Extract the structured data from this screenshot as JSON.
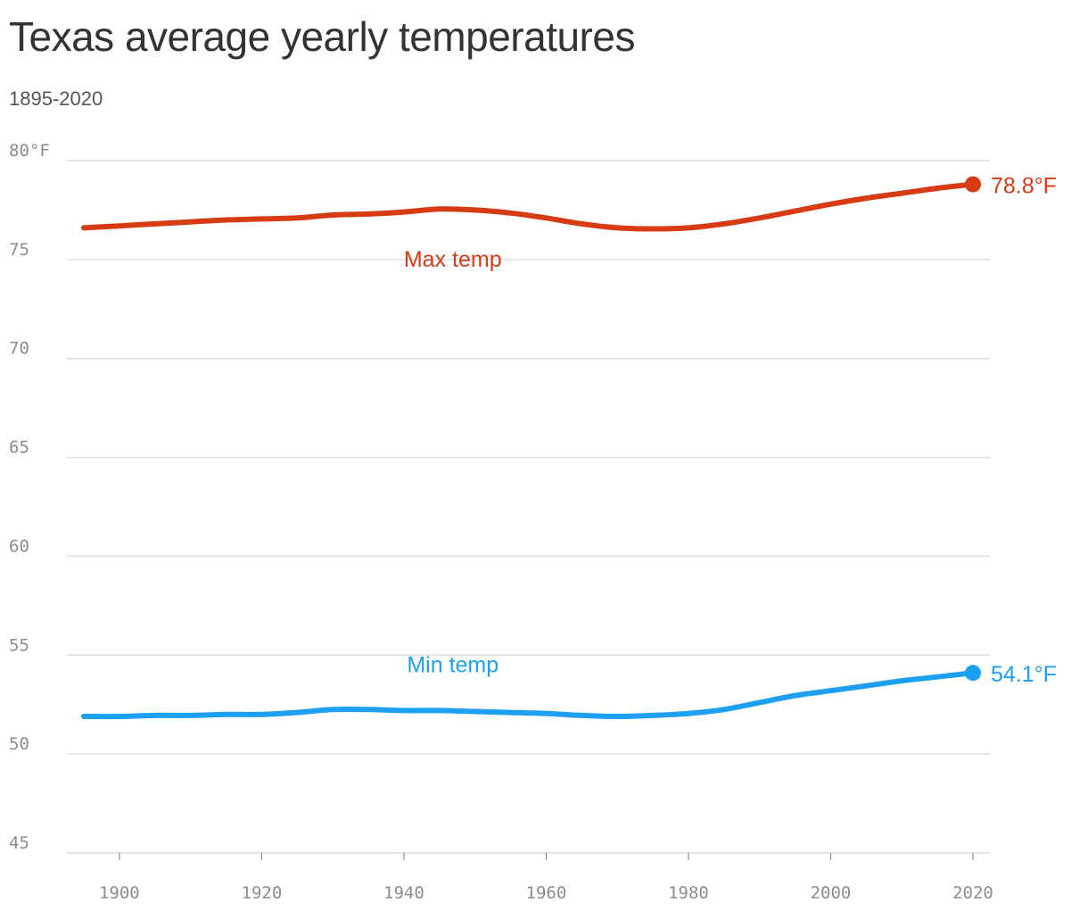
{
  "header": {
    "title": "Texas average yearly temperatures",
    "subtitle": "1895-2020"
  },
  "chart_data": {
    "type": "line",
    "title": "Texas average yearly temperatures",
    "subtitle": "1895-2020",
    "xlabel": "",
    "ylabel": "",
    "xlim": [
      1895,
      2020
    ],
    "ylim": [
      45,
      80
    ],
    "x_ticks": [
      1900,
      1920,
      1940,
      1960,
      1980,
      2000,
      2020
    ],
    "y_ticks": [
      {
        "value": 80,
        "label": "80°F"
      },
      {
        "value": 75,
        "label": "75"
      },
      {
        "value": 70,
        "label": "70"
      },
      {
        "value": 65,
        "label": "65"
      },
      {
        "value": 60,
        "label": "60"
      },
      {
        "value": 55,
        "label": "55"
      },
      {
        "value": 50,
        "label": "50"
      },
      {
        "value": 45,
        "label": "45"
      }
    ],
    "grid": true,
    "legend": "inline labels",
    "series": [
      {
        "name": "Max temp",
        "color": "#d63b14",
        "label_at": {
          "x": 1947,
          "y": 75
        },
        "end_label": "78.8°F",
        "points": [
          [
            1895,
            76.6
          ],
          [
            1900,
            76.7
          ],
          [
            1905,
            76.8
          ],
          [
            1910,
            76.9
          ],
          [
            1915,
            77.0
          ],
          [
            1920,
            77.05
          ],
          [
            1925,
            77.1
          ],
          [
            1930,
            77.25
          ],
          [
            1935,
            77.3
          ],
          [
            1940,
            77.4
          ],
          [
            1945,
            77.55
          ],
          [
            1950,
            77.5
          ],
          [
            1955,
            77.35
          ],
          [
            1960,
            77.1
          ],
          [
            1965,
            76.8
          ],
          [
            1970,
            76.6
          ],
          [
            1975,
            76.55
          ],
          [
            1980,
            76.6
          ],
          [
            1985,
            76.8
          ],
          [
            1990,
            77.1
          ],
          [
            1995,
            77.45
          ],
          [
            2000,
            77.8
          ],
          [
            2005,
            78.1
          ],
          [
            2010,
            78.35
          ],
          [
            2015,
            78.6
          ],
          [
            2020,
            78.8
          ]
        ]
      },
      {
        "name": "Min temp",
        "color": "#1d9ff2",
        "label_at": {
          "x": 1947,
          "y": 54.5
        },
        "end_label": "54.1°F",
        "points": [
          [
            1895,
            51.9
          ],
          [
            1900,
            51.9
          ],
          [
            1905,
            51.95
          ],
          [
            1910,
            51.95
          ],
          [
            1915,
            52.0
          ],
          [
            1920,
            52.0
          ],
          [
            1925,
            52.1
          ],
          [
            1930,
            52.25
          ],
          [
            1935,
            52.25
          ],
          [
            1940,
            52.2
          ],
          [
            1945,
            52.2
          ],
          [
            1950,
            52.15
          ],
          [
            1955,
            52.1
          ],
          [
            1960,
            52.05
          ],
          [
            1965,
            51.95
          ],
          [
            1970,
            51.9
          ],
          [
            1975,
            51.95
          ],
          [
            1980,
            52.05
          ],
          [
            1985,
            52.25
          ],
          [
            1990,
            52.6
          ],
          [
            1995,
            52.95
          ],
          [
            2000,
            53.2
          ],
          [
            2005,
            53.45
          ],
          [
            2010,
            53.7
          ],
          [
            2015,
            53.9
          ],
          [
            2020,
            54.1
          ]
        ]
      }
    ]
  }
}
